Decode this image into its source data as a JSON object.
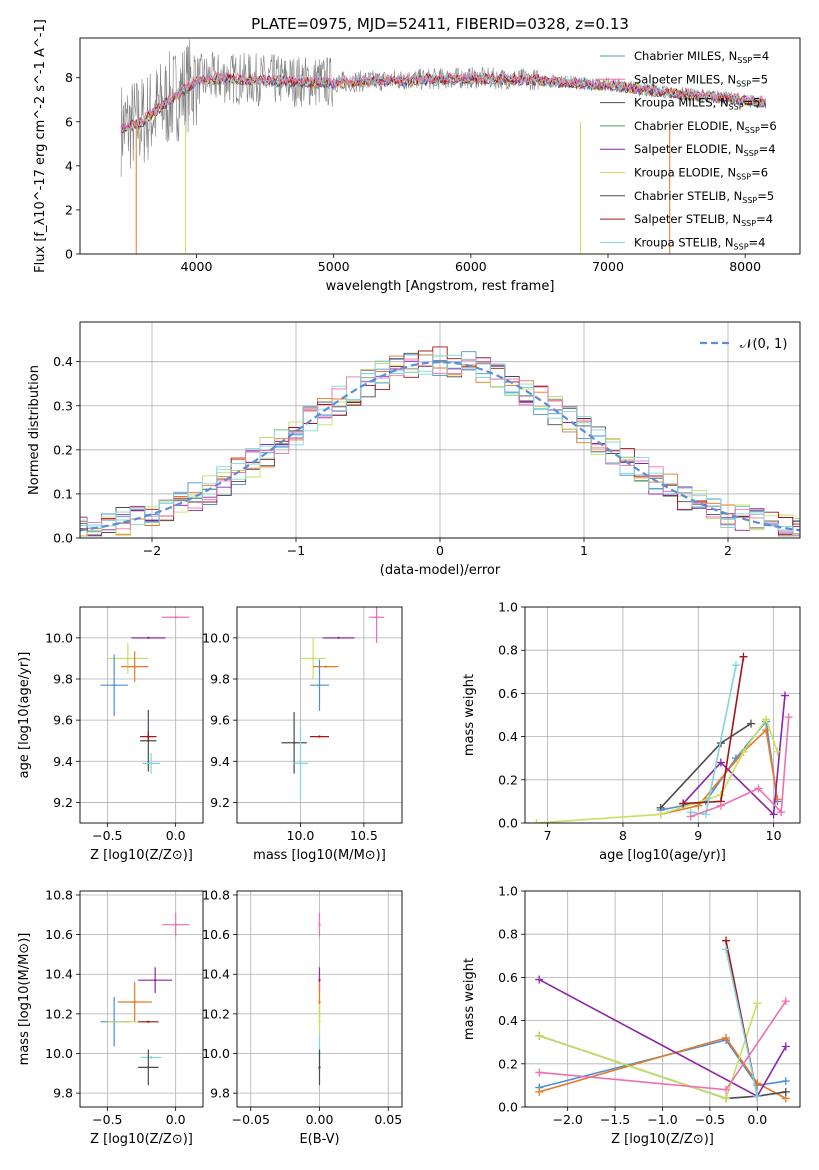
{
  "title": "PLATE=0975, MJD=52411, FIBERID=0328, z=0.13",
  "colors": [
    "#4a90d9",
    "#e87722",
    "#4c4c4c",
    "#8e24aa",
    "#c6e060",
    "#a31515",
    "#7fd6dc",
    "#f06fb0",
    "#808080"
  ],
  "chart_data": [
    {
      "id": "spectrum",
      "type": "line",
      "xlabel": "wavelength [Angstrom, rest frame]",
      "ylabel": "Flux [f_λ10^-17 erg cm^-2 s^-1 A^-1]",
      "xlim": [
        3150,
        8400
      ],
      "ylim": [
        0,
        9.8
      ],
      "xticks": [
        4000,
        5000,
        6000,
        7000,
        8000
      ],
      "yticks": [
        0,
        2,
        4,
        6,
        8
      ],
      "data_anchor": {
        "x": [
          3450,
          3600,
          3800,
          4000,
          4200,
          4500,
          5000,
          5500,
          6000,
          6500,
          7000,
          7500,
          8000,
          8100
        ],
        "y": [
          5.7,
          6.0,
          7.0,
          7.9,
          8.0,
          7.9,
          7.8,
          7.9,
          8.0,
          7.9,
          7.7,
          7.3,
          7.0,
          6.9
        ]
      },
      "legend": [
        {
          "label": "Chabrier MILES, N",
          "sub": "SSP",
          "n": "=4"
        },
        {
          "label": "Salpeter MILES, N",
          "sub": "SSP",
          "n": "=5"
        },
        {
          "label": "Kroupa MILES, N",
          "sub": "SSP",
          "n": "=5"
        },
        {
          "label": "Chabrier ELODIE, N",
          "sub": "SSP",
          "n": "=6"
        },
        {
          "label": "Salpeter ELODIE, N",
          "sub": "SSP",
          "n": "=4"
        },
        {
          "label": "Kroupa ELODIE, N",
          "sub": "SSP",
          "n": "=6"
        },
        {
          "label": "Chabrier STELIB, N",
          "sub": "SSP",
          "n": "=5"
        },
        {
          "label": "Salpeter STELIB, N",
          "sub": "SSP",
          "n": "=4"
        },
        {
          "label": "Kroupa STELIB, N",
          "sub": "SSP",
          "n": "=4"
        }
      ],
      "legend_colors": [
        "#4a90d9",
        "#f06fb0",
        "#4c4c4c",
        "#4c9a6a",
        "#8e24aa",
        "#c6e060",
        "#4c4c4c",
        "#a31515",
        "#7fd6dc"
      ]
    },
    {
      "id": "residuals",
      "type": "line",
      "xlabel": "(data-model)/error",
      "ylabel": "Normed distribution",
      "xlim": [
        -2.5,
        2.5
      ],
      "ylim": [
        0,
        0.49
      ],
      "xticks": [
        -2,
        -1,
        0,
        1,
        2
      ],
      "yticks": [
        0.0,
        0.1,
        0.2,
        0.3,
        0.4
      ],
      "legend": "𝒩(0, 1)",
      "normal_color": "#5b8ed6"
    },
    {
      "id": "age-vs-Z",
      "type": "scatter",
      "xlabel": "Z [log10(Z/Z⊙)]",
      "ylabel": "age [log10(age/yr)]",
      "xlim": [
        -0.7,
        0.2
      ],
      "ylim": [
        9.1,
        10.15
      ],
      "xticks": [
        -0.5,
        0.0
      ],
      "yticks": [
        9.2,
        9.4,
        9.6,
        9.8,
        10.0
      ],
      "points": [
        {
          "x": 0.0,
          "y": 10.1,
          "xe": 0.2,
          "ye": 0.0,
          "c": 7
        },
        {
          "x": -0.2,
          "y": 10.0,
          "xe": 0.25,
          "ye": 0.0,
          "c": 3
        },
        {
          "x": -0.35,
          "y": 9.9,
          "xe": 0.3,
          "ye": 0.15,
          "c": 4
        },
        {
          "x": -0.3,
          "y": 9.86,
          "xe": 0.2,
          "ye": 0.15,
          "c": 1
        },
        {
          "x": -0.45,
          "y": 9.77,
          "xe": 0.2,
          "ye": 0.3,
          "c": 0
        },
        {
          "x": -0.2,
          "y": 9.5,
          "xe": 0.12,
          "ye": 0.3,
          "c": 2
        },
        {
          "x": -0.2,
          "y": 9.52,
          "xe": 0.12,
          "ye": 0.05,
          "c": 5
        },
        {
          "x": -0.18,
          "y": 9.39,
          "xe": 0.13,
          "ye": 0.1,
          "c": 6
        }
      ]
    },
    {
      "id": "age-vs-mass",
      "type": "scatter",
      "xlabel": "mass [log10(M/M⊙)]",
      "ylabel": "",
      "xlim": [
        9.5,
        10.8
      ],
      "ylim": [
        9.1,
        10.15
      ],
      "xticks": [
        10.0,
        10.5
      ],
      "yticks": [
        9.2,
        9.4,
        9.6,
        9.8,
        10.0
      ],
      "points": [
        {
          "x": 10.6,
          "y": 10.1,
          "xe": 0.12,
          "ye": 0.25,
          "c": 7
        },
        {
          "x": 10.3,
          "y": 10.0,
          "xe": 0.25,
          "ye": 0.0,
          "c": 3
        },
        {
          "x": 10.1,
          "y": 9.9,
          "xe": 0.2,
          "ye": 0.2,
          "c": 4
        },
        {
          "x": 10.2,
          "y": 9.86,
          "xe": 0.2,
          "ye": 0.0,
          "c": 1
        },
        {
          "x": 10.15,
          "y": 9.77,
          "xe": 0.15,
          "ye": 0.25,
          "c": 0
        },
        {
          "x": 9.95,
          "y": 9.49,
          "xe": 0.2,
          "ye": 0.3,
          "c": 2
        },
        {
          "x": 10.15,
          "y": 9.52,
          "xe": 0.15,
          "ye": 0.0,
          "c": 5
        },
        {
          "x": 10.0,
          "y": 9.39,
          "xe": 0.12,
          "ye": 0.35,
          "c": 6
        }
      ]
    },
    {
      "id": "weight-vs-age",
      "type": "line",
      "xlabel": "age [log10(age/yr)]",
      "ylabel": "mass weight",
      "xlim": [
        6.7,
        10.35
      ],
      "ylim": [
        0,
        1.0
      ],
      "xticks": [
        7,
        8,
        9,
        10
      ],
      "yticks": [
        0.0,
        0.2,
        0.4,
        0.6,
        0.8,
        1.0
      ],
      "series": [
        {
          "c": 0,
          "x": [
            8.5,
            9.1,
            9.5,
            9.9,
            10.05
          ],
          "y": [
            0.06,
            0.1,
            0.3,
            0.47,
            0.1
          ]
        },
        {
          "c": 1,
          "x": [
            8.5,
            9.0,
            9.6,
            9.9,
            10.05
          ],
          "y": [
            0.04,
            0.08,
            0.33,
            0.43,
            0.11
          ]
        },
        {
          "c": 2,
          "x": [
            8.5,
            9.3,
            9.7
          ],
          "y": [
            0.07,
            0.37,
            0.46
          ]
        },
        {
          "c": 3,
          "x": [
            8.8,
            9.3,
            10.0,
            10.15
          ],
          "y": [
            0.09,
            0.28,
            0.04,
            0.59
          ]
        },
        {
          "c": 4,
          "x": [
            6.85,
            8.5,
            9.3,
            9.6,
            9.9,
            10.05
          ],
          "y": [
            0.0,
            0.04,
            0.13,
            0.33,
            0.48,
            0.33
          ]
        },
        {
          "c": 5,
          "x": [
            8.8,
            9.3,
            9.6
          ],
          "y": [
            0.09,
            0.1,
            0.77
          ]
        },
        {
          "c": 6,
          "x": [
            8.9,
            9.1,
            9.5
          ],
          "y": [
            0.05,
            0.04,
            0.73
          ]
        },
        {
          "c": 7,
          "x": [
            8.9,
            9.3,
            9.8,
            10.1,
            10.2
          ],
          "y": [
            0.03,
            0.08,
            0.16,
            0.05,
            0.49
          ]
        }
      ]
    },
    {
      "id": "mass-vs-Z",
      "type": "scatter",
      "xlabel": "Z [log10(Z/Z⊙)]",
      "ylabel": "mass [log10(M/M⊙)]",
      "xlim": [
        -0.7,
        0.2
      ],
      "ylim": [
        9.73,
        10.82
      ],
      "xticks": [
        -0.5,
        0.0
      ],
      "yticks": [
        9.8,
        10.0,
        10.2,
        10.4,
        10.6,
        10.8
      ],
      "points": [
        {
          "x": 0.0,
          "y": 10.65,
          "xe": 0.2,
          "ye": 0.12,
          "c": 7
        },
        {
          "x": -0.15,
          "y": 10.37,
          "xe": 0.25,
          "ye": 0.13,
          "c": 3
        },
        {
          "x": -0.3,
          "y": 10.26,
          "xe": 0.25,
          "ye": 0.2,
          "c": 1
        },
        {
          "x": -0.45,
          "y": 10.16,
          "xe": 0.2,
          "ye": 0.25,
          "c": 0
        },
        {
          "x": -0.35,
          "y": 10.16,
          "xe": 0.3,
          "ye": 0.0,
          "c": 4
        },
        {
          "x": -0.2,
          "y": 10.16,
          "xe": 0.15,
          "ye": 0.0,
          "c": 5
        },
        {
          "x": -0.18,
          "y": 9.98,
          "xe": 0.15,
          "ye": 0.0,
          "c": 6
        },
        {
          "x": -0.2,
          "y": 9.93,
          "xe": 0.15,
          "ye": 0.18,
          "c": 2
        }
      ]
    },
    {
      "id": "mass-vs-EBV",
      "type": "scatter",
      "xlabel": "E(B-V)",
      "ylabel": "",
      "xlim": [
        -0.06,
        0.06
      ],
      "ylim": [
        9.73,
        10.82
      ],
      "xticks": [
        -0.05,
        0.0,
        0.05
      ],
      "yticks": [
        9.8,
        10.0,
        10.2,
        10.4,
        10.6,
        10.8
      ],
      "points": [
        {
          "x": 0.0,
          "y": 10.65,
          "xe": 0.0,
          "ye": 0.12,
          "c": 7
        },
        {
          "x": 0.0,
          "y": 10.37,
          "xe": 0.0,
          "ye": 0.13,
          "c": 3
        },
        {
          "x": 0.0,
          "y": 10.26,
          "xe": 0.0,
          "ye": 0.2,
          "c": 1
        },
        {
          "x": 0.0,
          "y": 10.16,
          "xe": 0.0,
          "ye": 0.18,
          "c": 4
        },
        {
          "x": 0.0,
          "y": 10.0,
          "xe": 0.0,
          "ye": 0.2,
          "c": 6
        },
        {
          "x": 0.0,
          "y": 9.93,
          "xe": 0.0,
          "ye": 0.18,
          "c": 2
        }
      ]
    },
    {
      "id": "weight-vs-Z",
      "type": "line",
      "xlabel": "Z [log10(Z/Z⊙)]",
      "ylabel": "mass weight",
      "xlim": [
        -2.45,
        0.45
      ],
      "ylim": [
        0,
        1.0
      ],
      "xticks": [
        -2.0,
        -1.5,
        -1.0,
        -0.5,
        0.0
      ],
      "yticks": [
        0.0,
        0.2,
        0.4,
        0.6,
        0.8,
        1.0
      ],
      "series": [
        {
          "c": 0,
          "x": [
            -2.3,
            -0.33,
            0.0,
            0.3
          ],
          "y": [
            0.09,
            0.31,
            0.1,
            0.12
          ]
        },
        {
          "c": 1,
          "x": [
            -2.3,
            -0.33,
            0.0,
            0.3
          ],
          "y": [
            0.07,
            0.32,
            0.11,
            0.04
          ]
        },
        {
          "c": 2,
          "x": [
            -2.3,
            -0.33,
            0.0,
            0.3
          ],
          "y": [
            0.33,
            0.04,
            0.05,
            0.07
          ]
        },
        {
          "c": 3,
          "x": [
            -2.3,
            0.0,
            0.3
          ],
          "y": [
            0.59,
            0.05,
            0.28
          ]
        },
        {
          "c": 4,
          "x": [
            -2.3,
            -0.33,
            0.0
          ],
          "y": [
            0.33,
            0.04,
            0.48
          ]
        },
        {
          "c": 5,
          "x": [
            -0.33,
            0.0
          ],
          "y": [
            0.77,
            0.05
          ]
        },
        {
          "c": 6,
          "x": [
            -0.33,
            0.0
          ],
          "y": [
            0.73,
            0.05
          ]
        },
        {
          "c": 7,
          "x": [
            -2.3,
            -0.33,
            0.3
          ],
          "y": [
            0.16,
            0.08,
            0.49
          ]
        }
      ]
    }
  ]
}
